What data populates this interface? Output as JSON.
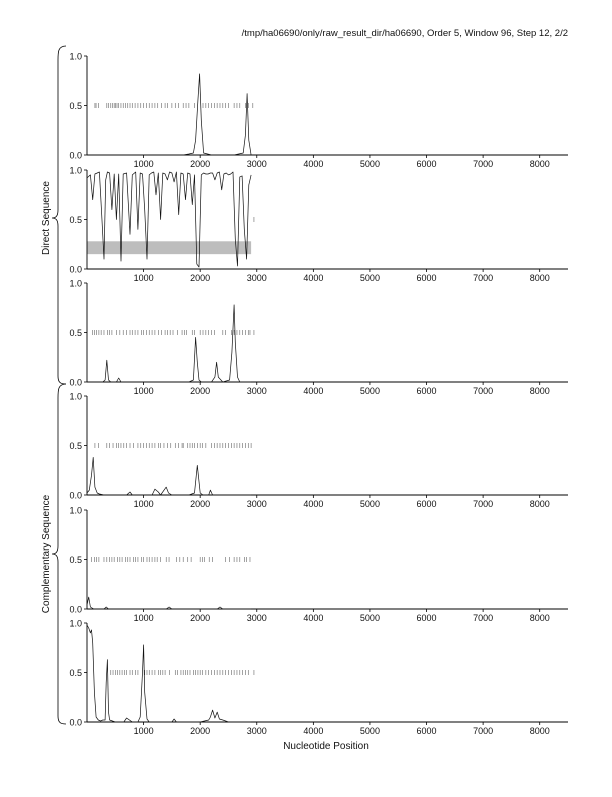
{
  "header": "/tmp/ha06690/only/raw_result_dir/ha06690, Order 5, Window 96, Step 12, 2/2",
  "xlabel": "Nucleotide Position",
  "group_labels": {
    "direct": "Direct Sequence",
    "complementary": "Complementary Sequence"
  },
  "colors": {
    "line": "#111111",
    "axis": "#000000",
    "highlight_bar": "#bdbdbd",
    "ticks": "#666666"
  },
  "chart_data": [
    {
      "type": "line",
      "group": "Direct Sequence",
      "xlim": [
        0,
        8500
      ],
      "ylim": [
        0,
        1
      ],
      "xticks": [
        1000,
        2000,
        3000,
        4000,
        5000,
        6000,
        7000,
        8000
      ],
      "yticks": [
        0.0,
        0.5,
        1.0
      ],
      "ytick_labels": [
        "0.0",
        "0.5",
        "1.0"
      ],
      "series": [
        {
          "x": [
            0,
            150,
            300,
            500,
            700,
            900,
            1100,
            1300,
            1500,
            1700,
            1800,
            1880,
            1920,
            1960,
            1990,
            2020,
            2060,
            2200,
            2400,
            2600,
            2760,
            2800,
            2830,
            2860,
            2900
          ],
          "y": [
            0,
            0,
            0,
            0,
            0,
            0,
            0,
            0,
            0,
            0,
            0.01,
            0.02,
            0.15,
            0.55,
            0.82,
            0.35,
            0.02,
            0,
            0,
            0,
            0.02,
            0.2,
            0.62,
            0.15,
            0
          ]
        }
      ],
      "tick_marks_y": 0.5,
      "tick_marks_x": [
        140,
        160,
        200,
        350,
        380,
        420,
        450,
        480,
        500,
        530,
        560,
        600,
        640,
        680,
        720,
        760,
        800,
        850,
        900,
        950,
        1000,
        1050,
        1100,
        1150,
        1200,
        1250,
        1320,
        1380,
        1420,
        1500,
        1560,
        1620,
        1700,
        1750,
        1800,
        1900,
        2050,
        2100,
        2150,
        2200,
        2250,
        2300,
        2350,
        2400,
        2450,
        2500,
        2600,
        2650,
        2700,
        2800,
        2850,
        2930
      ]
    },
    {
      "type": "line",
      "group": "Direct Sequence",
      "xlim": [
        0,
        8500
      ],
      "ylim": [
        0,
        1
      ],
      "xticks": [
        1000,
        2000,
        3000,
        4000,
        5000,
        6000,
        7000,
        8000
      ],
      "yticks": [
        0.0,
        0.5,
        1.0
      ],
      "ytick_labels": [
        "0.0",
        "0.5",
        "1.0"
      ],
      "highlight": {
        "x": [
          0,
          2900
        ],
        "y": [
          0.15,
          0.28
        ]
      },
      "series": [
        {
          "x": [
            0,
            60,
            100,
            140,
            180,
            220,
            260,
            300,
            330,
            360,
            400,
            440,
            480,
            520,
            560,
            600,
            640,
            700,
            760,
            800,
            860,
            900,
            940,
            980,
            1020,
            1060,
            1100,
            1140,
            1180,
            1220,
            1260,
            1300,
            1340,
            1380,
            1420,
            1460,
            1500,
            1540,
            1580,
            1620,
            1660,
            1700,
            1740,
            1780,
            1820,
            1860,
            1900,
            1940,
            1980,
            2020,
            2060,
            2100,
            2140,
            2180,
            2220,
            2260,
            2300,
            2340,
            2380,
            2420,
            2460,
            2500,
            2540,
            2580,
            2620,
            2660,
            2700,
            2740,
            2780,
            2820,
            2860,
            2900
          ],
          "y": [
            0.92,
            0.95,
            0.7,
            0.96,
            0.97,
            0.98,
            0.55,
            0.1,
            0.9,
            0.98,
            0.97,
            0.6,
            0.96,
            0.5,
            0.96,
            0.08,
            0.96,
            0.97,
            0.35,
            0.95,
            0.98,
            0.4,
            0.97,
            0.96,
            0.6,
            0.1,
            0.95,
            0.97,
            0.98,
            0.75,
            0.97,
            0.5,
            0.97,
            0.96,
            0.9,
            0.98,
            0.97,
            0.88,
            0.98,
            0.55,
            0.97,
            0.96,
            0.7,
            0.97,
            0.96,
            0.65,
            0.95,
            0.05,
            0.02,
            0.95,
            0.97,
            0.96,
            0.96,
            0.97,
            0.97,
            0.9,
            0.97,
            0.98,
            0.8,
            0.96,
            0.97,
            0.95,
            0.96,
            0.98,
            0.3,
            0.03,
            0.93,
            0.94,
            0.4,
            0.1,
            0.85,
            0.95
          ]
        }
      ],
      "tick_marks_y": 0.5,
      "tick_marks_x": [
        2950
      ]
    },
    {
      "type": "line",
      "group": "Direct Sequence",
      "xlim": [
        0,
        8500
      ],
      "ylim": [
        0,
        1
      ],
      "xticks": [
        1000,
        2000,
        3000,
        4000,
        5000,
        6000,
        7000,
        8000
      ],
      "yticks": [
        0.0,
        0.5,
        1.0
      ],
      "ytick_labels": [
        "0.0",
        "0.5",
        "1.0"
      ],
      "series": [
        {
          "x": [
            0,
            280,
            320,
            350,
            380,
            420,
            520,
            560,
            600,
            700,
            1000,
            1500,
            1800,
            1880,
            1920,
            1950,
            1980,
            2020,
            2200,
            2260,
            2290,
            2320,
            2400,
            2520,
            2560,
            2600,
            2620,
            2660,
            2700,
            2900
          ],
          "y": [
            0,
            0,
            0.02,
            0.22,
            0.02,
            0,
            0,
            0.04,
            0,
            0,
            0,
            0,
            0,
            0.02,
            0.45,
            0.2,
            0.02,
            0,
            0,
            0.05,
            0.2,
            0.05,
            0,
            0.02,
            0.3,
            0.78,
            0.4,
            0.05,
            0,
            0
          ]
        }
      ],
      "tick_marks_y": 0.5,
      "tick_marks_x": [
        100,
        130,
        170,
        210,
        250,
        300,
        360,
        400,
        440,
        520,
        580,
        640,
        700,
        760,
        800,
        850,
        900,
        960,
        1000,
        1050,
        1100,
        1150,
        1200,
        1260,
        1320,
        1380,
        1420,
        1470,
        1520,
        1600,
        1680,
        1720,
        1760,
        1860,
        1900,
        2000,
        2050,
        2100,
        2150,
        2200,
        2250,
        2400,
        2450,
        2550,
        2600,
        2650,
        2700,
        2750,
        2800,
        2850,
        2880,
        2950
      ]
    },
    {
      "type": "line",
      "group": "Complementary Sequence",
      "xlim": [
        0,
        8500
      ],
      "ylim": [
        0,
        1
      ],
      "xticks": [
        1000,
        2000,
        3000,
        4000,
        5000,
        6000,
        7000,
        8000
      ],
      "yticks": [
        0.0,
        0.5,
        1.0
      ],
      "ytick_labels": [
        "0.0",
        "0.5",
        "1.0"
      ],
      "series": [
        {
          "x": [
            0,
            40,
            80,
            110,
            140,
            180,
            220,
            300,
            500,
            700,
            760,
            800,
            1000,
            1150,
            1200,
            1260,
            1300,
            1400,
            1440,
            1500,
            1800,
            1900,
            1950,
            2000,
            2050,
            2150,
            2180,
            2220,
            2400,
            2900
          ],
          "y": [
            0.02,
            0.05,
            0.2,
            0.38,
            0.08,
            0.02,
            0.01,
            0,
            0,
            0,
            0.03,
            0,
            0,
            0,
            0.06,
            0.03,
            0,
            0.08,
            0.02,
            0,
            0,
            0.02,
            0.3,
            0.02,
            0,
            0,
            0.05,
            0,
            0,
            0
          ]
        }
      ],
      "tick_marks_y": 0.5,
      "tick_marks_x": [
        140,
        200,
        350,
        400,
        460,
        520,
        560,
        600,
        650,
        700,
        760,
        820,
        900,
        950,
        1000,
        1050,
        1100,
        1150,
        1200,
        1260,
        1300,
        1360,
        1420,
        1480,
        1560,
        1620,
        1680,
        1700,
        1780,
        1820,
        1860,
        1900,
        1950,
        2000,
        2040,
        2100,
        2200,
        2250,
        2300,
        2350,
        2400,
        2450,
        2500,
        2550,
        2600,
        2650,
        2700,
        2750,
        2800,
        2850,
        2900
      ]
    },
    {
      "type": "line",
      "group": "Complementary Sequence",
      "xlim": [
        0,
        8500
      ],
      "ylim": [
        0,
        1
      ],
      "xticks": [
        1000,
        2000,
        3000,
        4000,
        5000,
        6000,
        7000,
        8000
      ],
      "yticks": [
        0.0,
        0.5,
        1.0
      ],
      "ytick_labels": [
        "0.0",
        "0.5",
        "1.0"
      ],
      "series": [
        {
          "x": [
            0,
            30,
            60,
            90,
            120,
            200,
            300,
            340,
            380,
            500,
            1000,
            1400,
            1450,
            1500,
            2000,
            2300,
            2350,
            2400,
            2900
          ],
          "y": [
            0.04,
            0.12,
            0.02,
            0.01,
            0,
            0,
            0,
            0.02,
            0,
            0,
            0,
            0,
            0.02,
            0,
            0,
            0,
            0.02,
            0,
            0
          ]
        }
      ],
      "tick_marks_y": 0.5,
      "tick_marks_x": [
        80,
        130,
        170,
        210,
        300,
        350,
        400,
        440,
        480,
        540,
        580,
        620,
        680,
        720,
        760,
        820,
        860,
        900,
        960,
        1000,
        1060,
        1100,
        1150,
        1200,
        1240,
        1300,
        1400,
        1450,
        1580,
        1640,
        1700,
        1780,
        1840,
        2000,
        2040,
        2080,
        2160,
        2220,
        2450,
        2520,
        2600,
        2650,
        2700,
        2780,
        2820,
        2880
      ]
    },
    {
      "type": "line",
      "group": "Complementary Sequence",
      "xlim": [
        0,
        8500
      ],
      "ylim": [
        0,
        1
      ],
      "xticks": [
        1000,
        2000,
        3000,
        4000,
        5000,
        6000,
        7000,
        8000
      ],
      "yticks": [
        0.0,
        0.5,
        1.0
      ],
      "ytick_labels": [
        "0.0",
        "0.5",
        "1.0"
      ],
      "series": [
        {
          "x": [
            0,
            30,
            60,
            80,
            100,
            130,
            160,
            200,
            240,
            280,
            320,
            340,
            360,
            380,
            400,
            500,
            650,
            700,
            800,
            900,
            940,
            980,
            1000,
            1020,
            1060,
            1100,
            1300,
            1500,
            1540,
            1580,
            1700,
            2000,
            2150,
            2180,
            2220,
            2260,
            2300,
            2340,
            2400,
            2500,
            2900
          ],
          "y": [
            0.98,
            0.95,
            0.9,
            0.93,
            0.8,
            0.3,
            0.05,
            0.02,
            0.01,
            0.02,
            0.02,
            0.4,
            0.63,
            0.1,
            0.02,
            0,
            0,
            0.04,
            0,
            0,
            0.05,
            0.5,
            0.78,
            0.3,
            0.03,
            0,
            0,
            0,
            0.03,
            0,
            0,
            0,
            0.02,
            0.05,
            0.12,
            0.04,
            0.1,
            0.03,
            0.02,
            0,
            0
          ]
        }
      ],
      "tick_marks_y": 0.5,
      "tick_marks_x": [
        420,
        460,
        500,
        540,
        580,
        620,
        660,
        700,
        760,
        800,
        860,
        900,
        1020,
        1060,
        1100,
        1150,
        1200,
        1260,
        1300,
        1340,
        1380,
        1460,
        1560,
        1600,
        1660,
        1700,
        1740,
        1780,
        1820,
        1880,
        1920,
        1960,
        2000,
        2040,
        2100,
        2150,
        2200,
        2250,
        2300,
        2350,
        2400,
        2450,
        2500,
        2550,
        2600,
        2650,
        2700,
        2750,
        2800,
        2850,
        2950
      ]
    }
  ]
}
